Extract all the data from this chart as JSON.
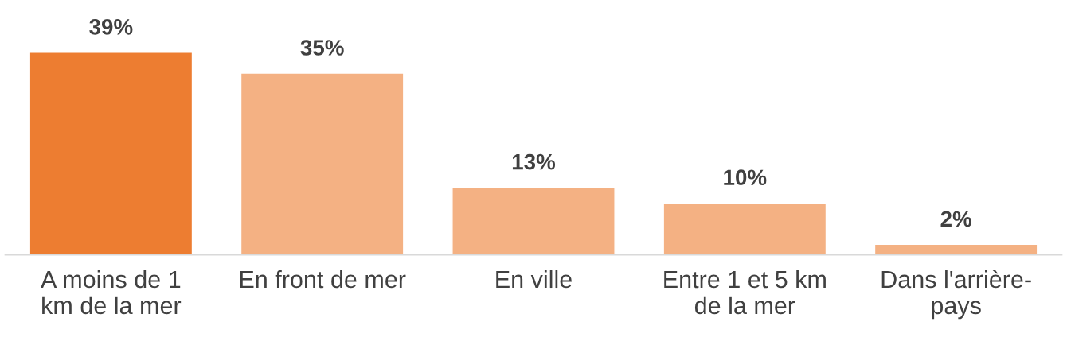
{
  "chart_data": {
    "type": "bar",
    "categories": [
      "A moins de 1\nkm de la mer",
      "En front de mer",
      "En ville",
      "Entre 1 et 5 km\nde la mer",
      "Dans l'arrière-\npays"
    ],
    "values": [
      39,
      35,
      13,
      10,
      2
    ],
    "colors": [
      "#ed7d31",
      "#f4b183",
      "#f4b183",
      "#f4b183",
      "#f4b183"
    ],
    "value_labels": [
      "39%",
      "35%",
      "13%",
      "10%",
      "2%"
    ],
    "grid": false,
    "legend": false
  }
}
